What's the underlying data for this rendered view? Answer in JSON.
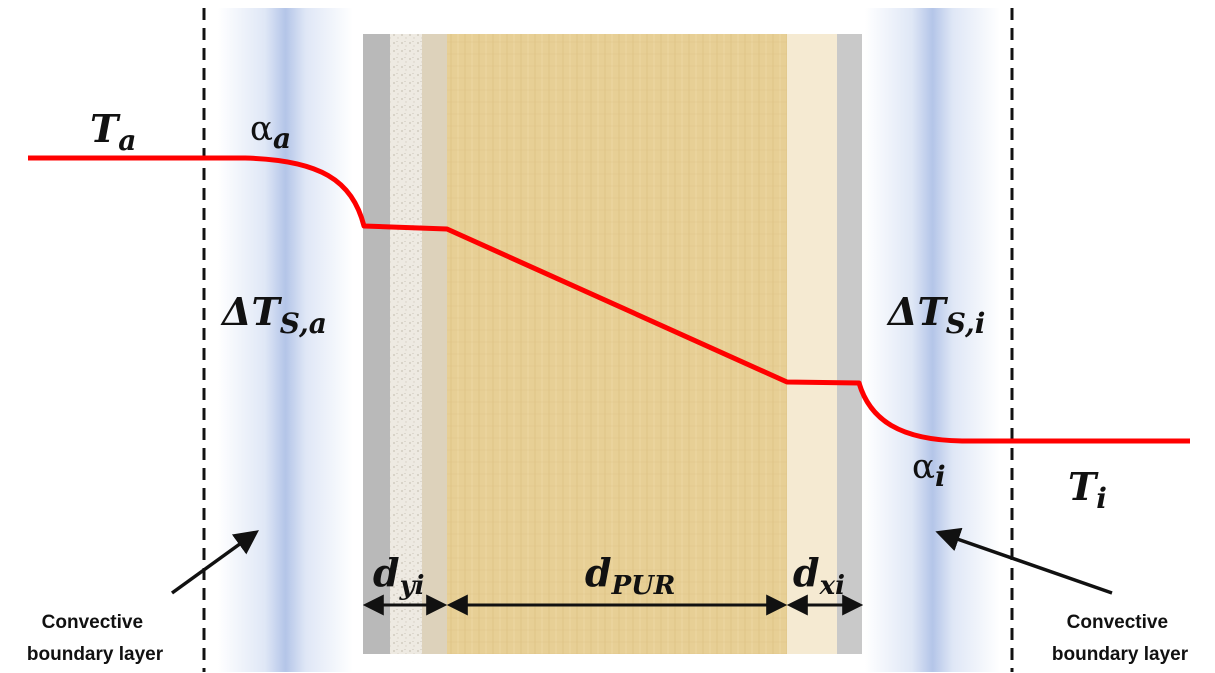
{
  "labels": {
    "T_outside": {
      "base": "T",
      "sub": "a"
    },
    "alpha_outside": {
      "base": "α",
      "sub": "a"
    },
    "dT_outside": {
      "base": "ΔT",
      "sub": "S,a"
    },
    "dT_inside": {
      "base": "ΔT",
      "sub": "S,i"
    },
    "alpha_inside": {
      "base": "α",
      "sub": "i"
    },
    "T_inside": {
      "base": "T",
      "sub": "i"
    },
    "d_outer_layer": {
      "base": "d",
      "sub": "yi"
    },
    "d_core": {
      "base": "d",
      "sub": "PUR"
    },
    "d_inner_layer": {
      "base": "d",
      "sub": "xi"
    },
    "left_callout": [
      "Convective",
      "boundary layer"
    ],
    "right_callout": [
      "Convective",
      "boundary layer"
    ]
  },
  "colors": {
    "temperature_line": "#ff0000",
    "boundary_band": "#b4c5e8",
    "core": "#e7cf95",
    "outer_skin": "#b9b9b9",
    "plaster": "#eeeae2",
    "inner_layer": "#f5ead2",
    "dashed_line": "#111111"
  }
}
